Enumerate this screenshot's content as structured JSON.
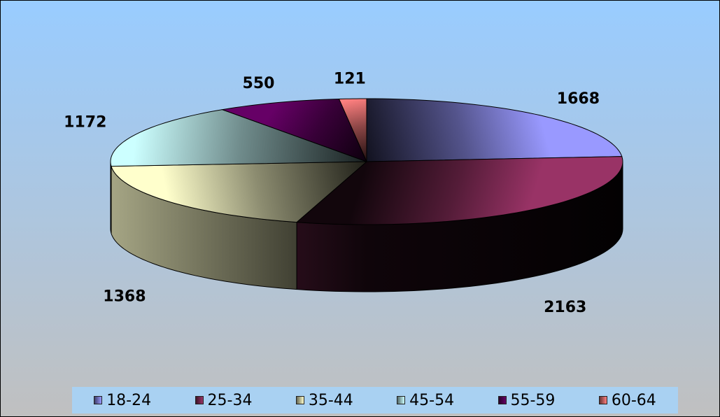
{
  "chart_data": {
    "type": "pie",
    "style": "3d-exploded-none",
    "categories": [
      "18-24",
      "25-34",
      "35-44",
      "45-54",
      "55-59",
      "60-64"
    ],
    "values": [
      1668,
      2163,
      1368,
      1172,
      550,
      121
    ],
    "colors": [
      "#9999ff",
      "#993366",
      "#ffffcc",
      "#ccffff",
      "#660066",
      "#ff8080"
    ],
    "legend_position": "bottom",
    "background": {
      "top": "#99ccff",
      "bottom": "#c0c0c0"
    }
  }
}
